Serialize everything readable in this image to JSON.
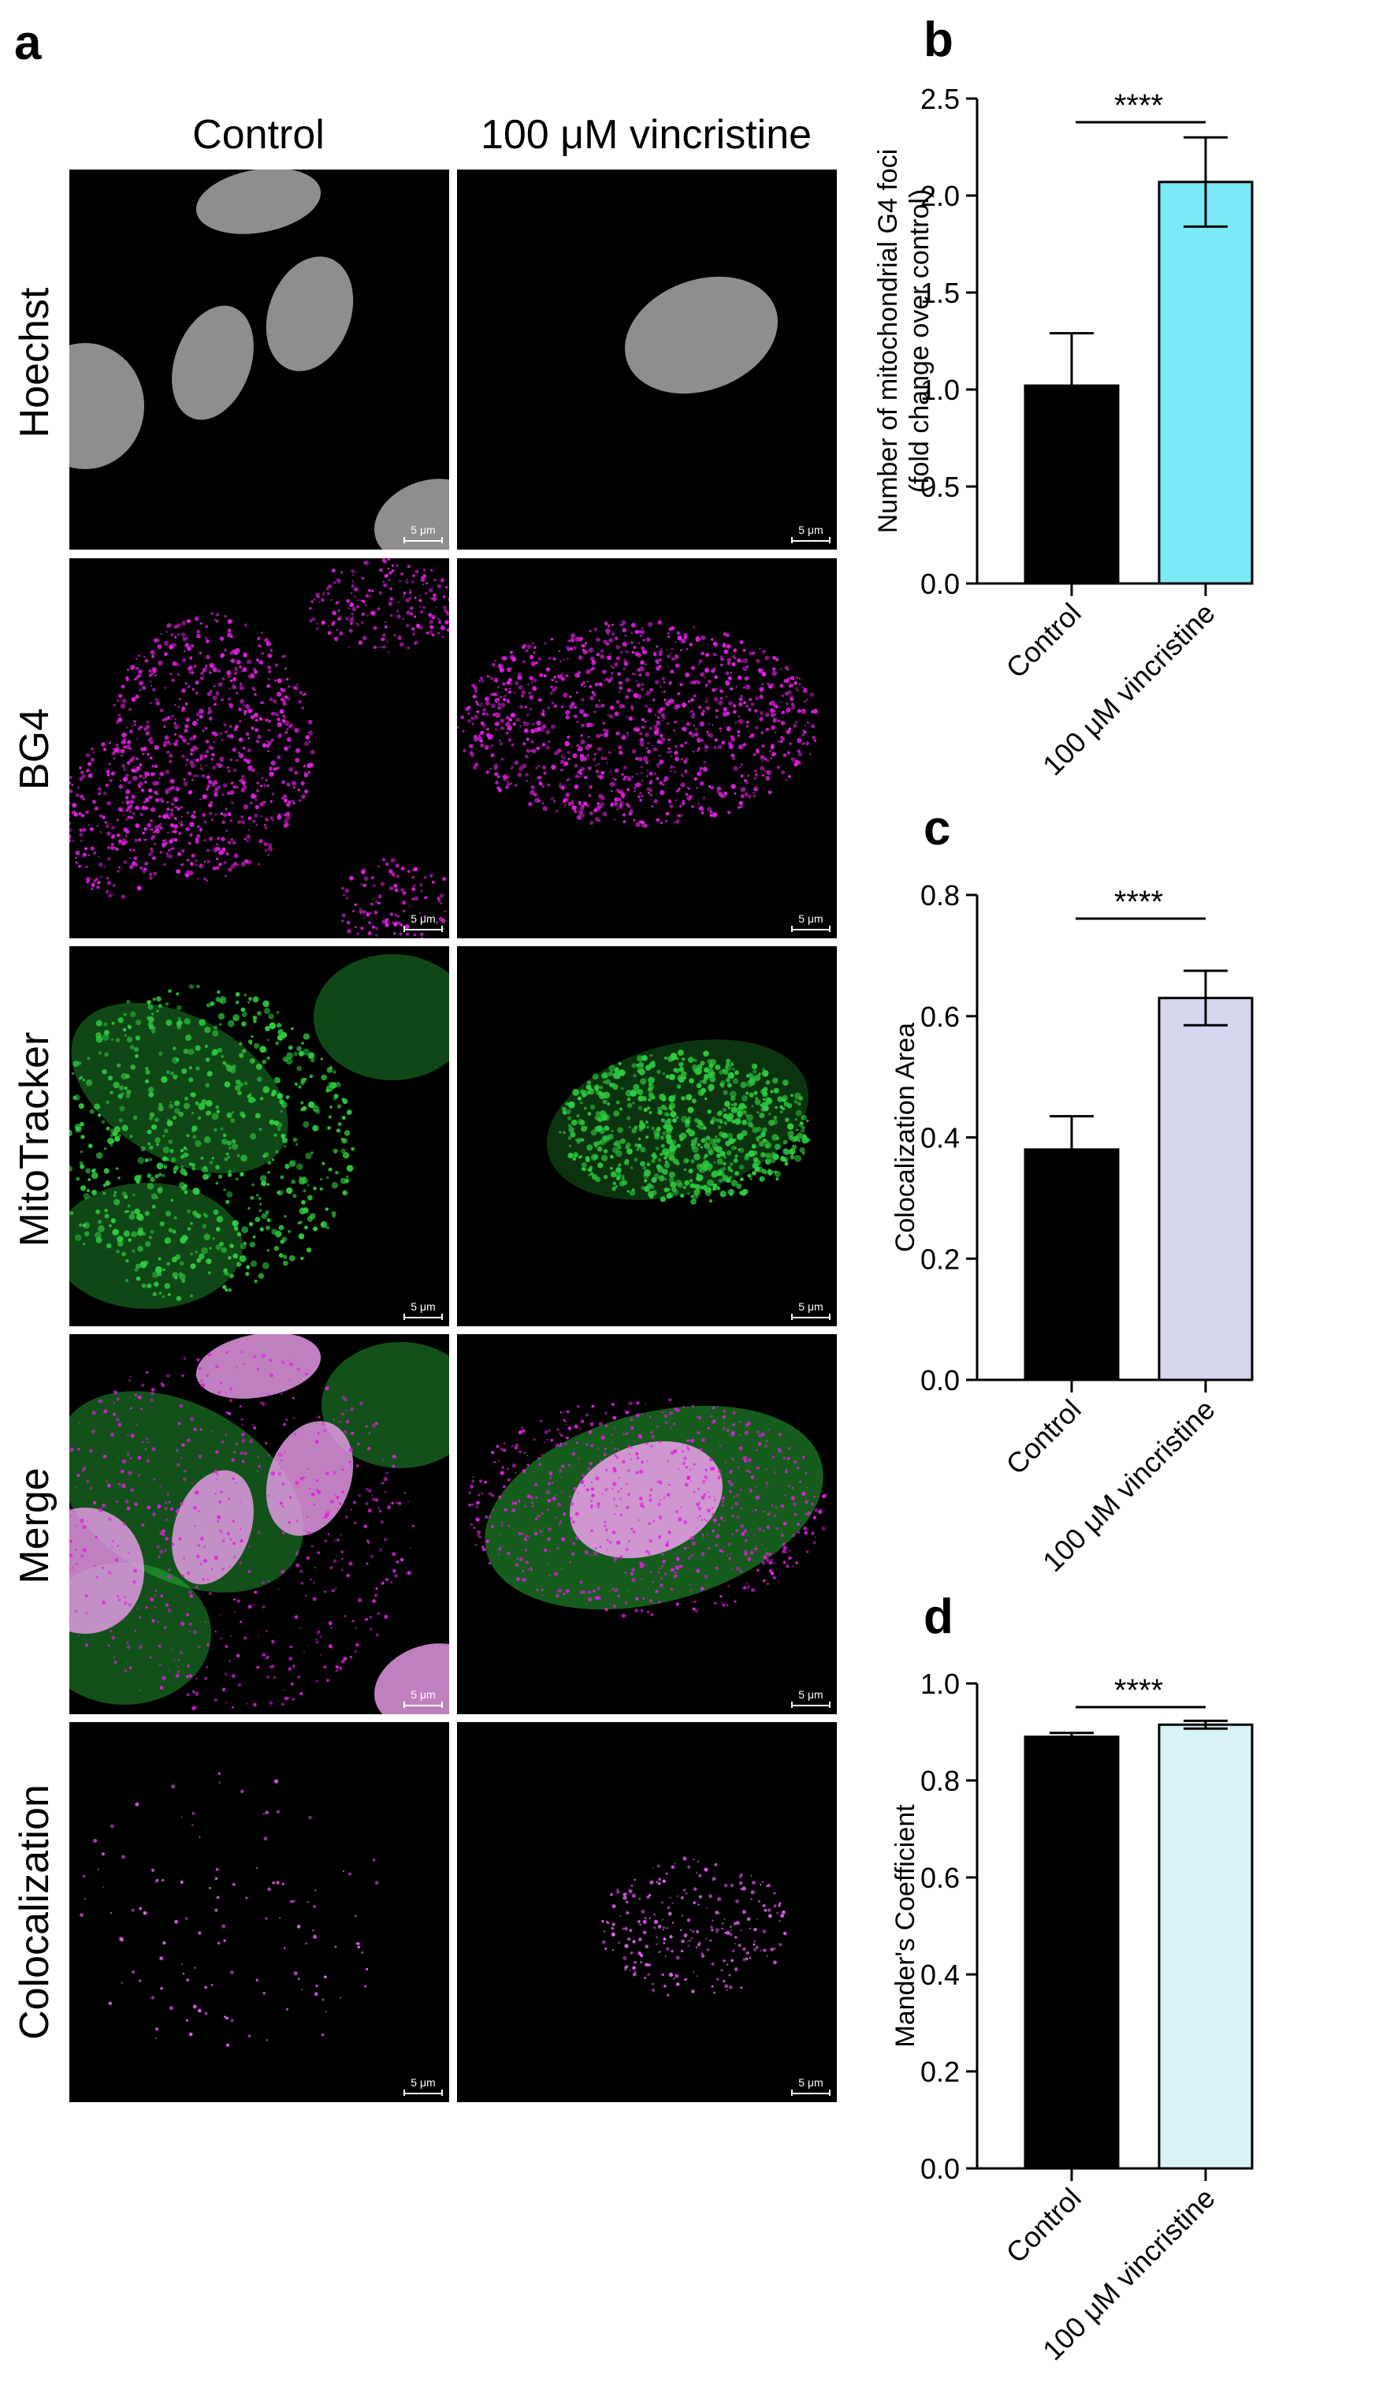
{
  "panels": {
    "a": "a",
    "b": "b",
    "c": "c",
    "d": "d"
  },
  "microscopy": {
    "columns": [
      "Control",
      "100 μM vincristine"
    ],
    "rows": [
      "Hoechst",
      "BG4",
      "MitoTracker",
      "Merge",
      "Colocalization"
    ],
    "scale_bar_label": "5 μm",
    "channel_colors": {
      "Hoechst": "#bdbdbd",
      "BG4": "#e020e0",
      "MitoTracker": "#2ecc40",
      "Merge_nucleus": "#f0a0f0",
      "Colocalization": "#e060f0"
    }
  },
  "significance_label": "****",
  "chart_data": [
    {
      "id": "b",
      "type": "bar",
      "categories": [
        "Control",
        "100 μM vincristine"
      ],
      "values": [
        1.02,
        2.07
      ],
      "errors": [
        0.27,
        0.23
      ],
      "bar_colors": [
        "#000000",
        "#7ae8f5"
      ],
      "ylabel_line1": "Number of mitochondrial G4 foci",
      "ylabel_line2": "(fold change over control)",
      "ylim": [
        0,
        2.5
      ],
      "yticks": [
        "0.0",
        "0.5",
        "1.0",
        "1.5",
        "2.0",
        "2.5"
      ],
      "significance": "****"
    },
    {
      "id": "c",
      "type": "bar",
      "categories": [
        "Control",
        "100 μM vincristine"
      ],
      "values": [
        0.38,
        0.63
      ],
      "errors": [
        0.055,
        0.045
      ],
      "bar_colors": [
        "#000000",
        "#d6d6f0"
      ],
      "ylabel_line1": "Colocalization Area",
      "ylabel_line2": "",
      "ylim": [
        0,
        0.8
      ],
      "yticks": [
        "0.0",
        "0.2",
        "0.4",
        "0.6",
        "0.8"
      ],
      "significance": "****"
    },
    {
      "id": "d",
      "type": "bar",
      "categories": [
        "Control",
        "100 μM vincristine"
      ],
      "values": [
        0.89,
        0.915
      ],
      "errors": [
        0.008,
        0.008
      ],
      "bar_colors": [
        "#000000",
        "#d8f3f5"
      ],
      "ylabel_line1": "Mander's Coefficient",
      "ylabel_line2": "",
      "ylim": [
        0,
        1.0
      ],
      "yticks": [
        "0.0",
        "0.2",
        "0.4",
        "0.6",
        "0.8",
        "1.0"
      ],
      "significance": "****"
    }
  ]
}
